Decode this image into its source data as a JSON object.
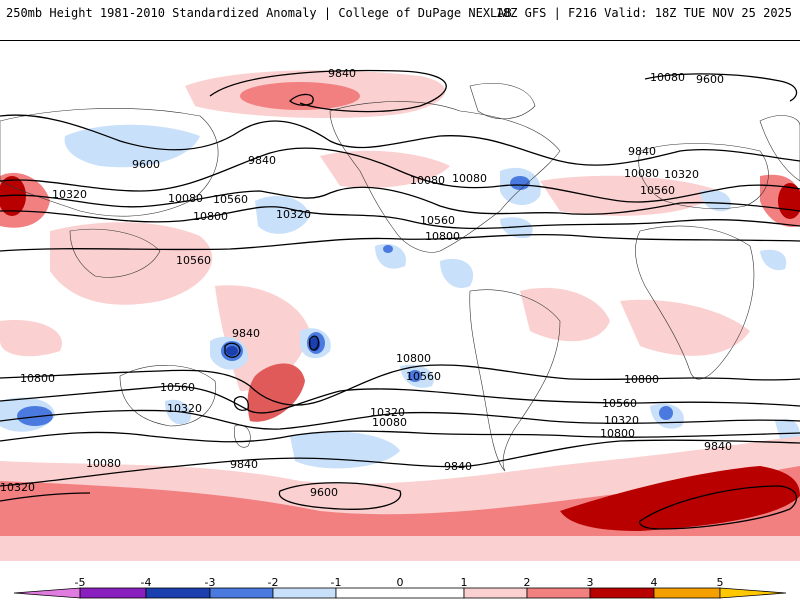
{
  "header": {
    "left": "250mb Height 1981-2010 Standardized Anomaly | College of DuPage NEXLAB",
    "right": "18Z GFS | F216 Valid: 18Z TUE NOV 25 2025"
  },
  "colors": {
    "neg5": "#e07be0",
    "neg4": "#8a1fc0",
    "neg3": "#1c3fb0",
    "neg2": "#4a7ae0",
    "neg1": "#c8e0fa",
    "zero": "#ffffff",
    "pos1": "#fbd0d0",
    "pos2": "#f28080",
    "pos3": "#e05a5a",
    "pos4": "#b80000",
    "pos5": "#f4a000",
    "pos6": "#ffc800"
  },
  "colorbar": {
    "ticks": [
      "-5",
      "-4",
      "-3",
      "-2",
      "-1",
      "0",
      "1",
      "2",
      "3",
      "4",
      "5"
    ]
  },
  "contour_labels": [
    "9840",
    "9600",
    "9840",
    "10080",
    "10320",
    "9600",
    "10080",
    "10560",
    "10800",
    "9840",
    "10320",
    "10560",
    "10080",
    "10320",
    "10560",
    "10800",
    "9840",
    "10080",
    "10560",
    "10320",
    "10800",
    "10800",
    "10560",
    "10800",
    "10560",
    "10320",
    "10560",
    "10320",
    "10080",
    "10080",
    "9840",
    "9840",
    "9600",
    "9840",
    "10800",
    "10320",
    "10080"
  ]
}
